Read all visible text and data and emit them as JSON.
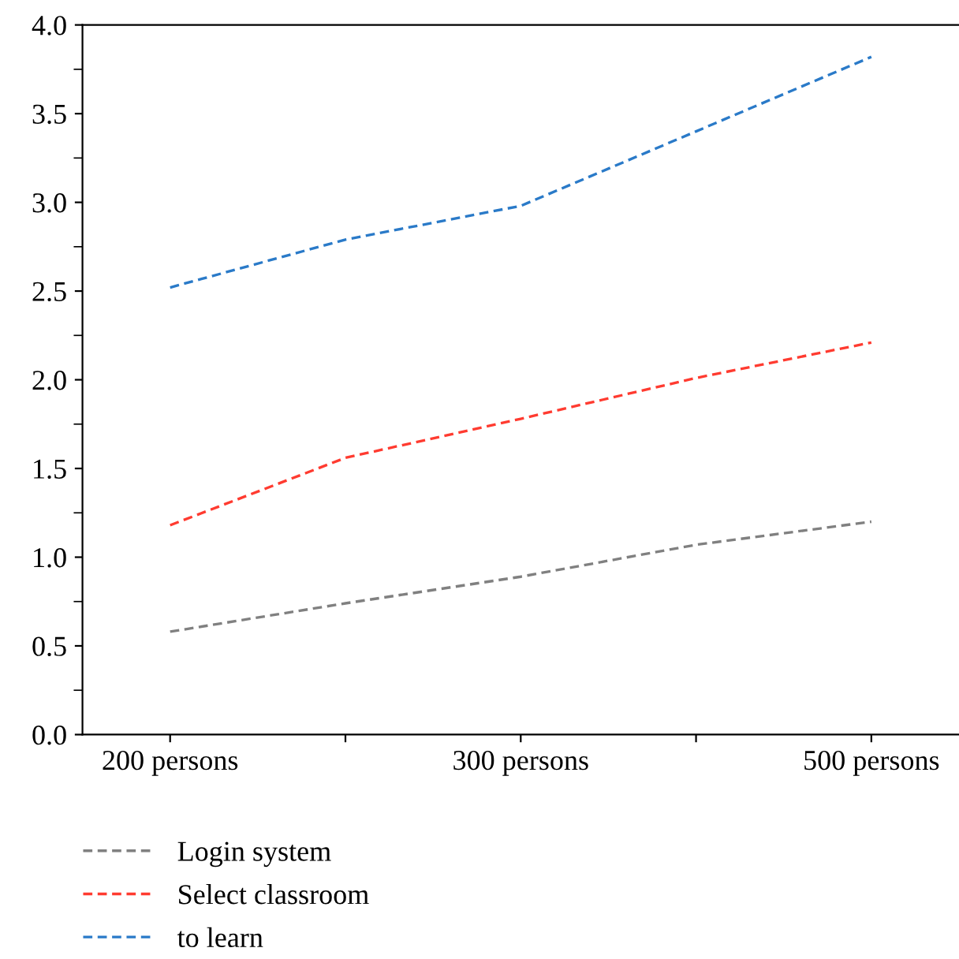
{
  "chart_data": {
    "type": "line",
    "categories": [
      "200 persons",
      null,
      "300 persons",
      null,
      "500 persons"
    ],
    "series": [
      {
        "name": "Login system",
        "color": "#808080",
        "values": [
          0.58,
          0.74,
          0.89,
          1.07,
          1.2
        ]
      },
      {
        "name": "Select classroom",
        "color": "#ff3b30",
        "values": [
          1.18,
          1.56,
          1.78,
          2.01,
          2.21
        ]
      },
      {
        "name": "to learn",
        "color": "#2a7ac8",
        "values": [
          2.52,
          2.79,
          2.98,
          3.4,
          3.82
        ]
      }
    ],
    "ylim": [
      0,
      4
    ],
    "yticks": [
      {
        "value": 0,
        "label": "0.0"
      },
      0.5,
      {
        "value": 1,
        "label": "1.0"
      },
      1.5,
      {
        "value": 2,
        "label": "2.0"
      },
      2.5,
      {
        "value": 3,
        "label": "3.0"
      },
      3.5,
      {
        "value": 4,
        "label": "4.0"
      }
    ],
    "line_style": "dashed",
    "marker": "none",
    "grid": false,
    "legend": "bottom left"
  }
}
